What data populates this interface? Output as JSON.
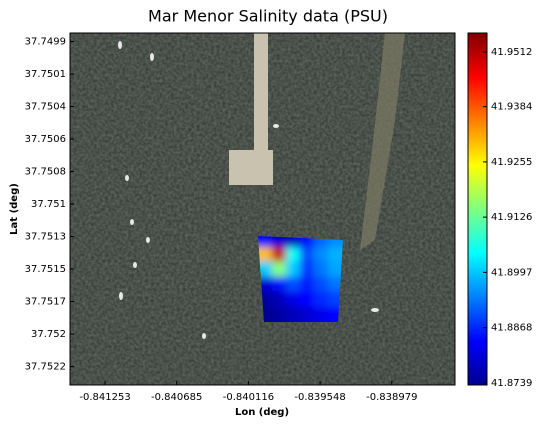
{
  "chart_data": {
    "type": "heatmap",
    "title": "Mar Menor Salinity data (PSU)",
    "x_label": "Lon (deg)",
    "y_label": "Lat (deg)",
    "xlim": [
      -0.841531,
      -0.838478
    ],
    "xticks": [
      -0.841253,
      -0.840685,
      -0.840116,
      -0.839548,
      -0.838979
    ],
    "ylim": [
      37.74984,
      37.75233
    ],
    "y_inverted": true,
    "yticks": [
      {
        "value": 37.7499,
        "label": "37.7499"
      },
      {
        "value": 37.75013,
        "label": "37.7501"
      },
      {
        "value": 37.75036,
        "label": "37.7504"
      },
      {
        "value": 37.75059,
        "label": "37.7506"
      },
      {
        "value": 37.75082,
        "label": "37.7508"
      },
      {
        "value": 37.75105,
        "label": "37.751"
      },
      {
        "value": 37.75128,
        "label": "37.7513"
      },
      {
        "value": 37.75151,
        "label": "37.7515"
      },
      {
        "value": 37.75174,
        "label": "37.7517"
      },
      {
        "value": 37.75197,
        "label": "37.752"
      },
      {
        "value": 37.7522,
        "label": "37.7522"
      }
    ],
    "x": [
      -0.839985,
      -0.839874,
      -0.839763,
      -0.839652,
      -0.839541,
      -0.83943
    ],
    "y": [
      37.7513,
      37.75141,
      37.75151,
      37.75162,
      37.75172,
      37.75183
    ],
    "z": [
      [
        41.885,
        41.88,
        41.878,
        41.885,
        41.892,
        41.895
      ],
      [
        41.93,
        41.95,
        41.905,
        41.89,
        41.895,
        41.898
      ],
      [
        41.9,
        41.915,
        41.9,
        41.888,
        41.893,
        41.897
      ],
      [
        41.88,
        41.885,
        41.89,
        41.886,
        41.89,
        41.893
      ],
      [
        41.876,
        41.878,
        41.882,
        41.884,
        41.887,
        41.889
      ],
      [
        41.875,
        41.876,
        41.878,
        41.88,
        41.882,
        41.884
      ]
    ],
    "colormap": "jet",
    "clim": [
      41.8734,
      41.9556
    ],
    "cticks": [
      41.8739,
      41.8868,
      41.8997,
      41.9126,
      41.9255,
      41.9384,
      41.9512
    ]
  }
}
